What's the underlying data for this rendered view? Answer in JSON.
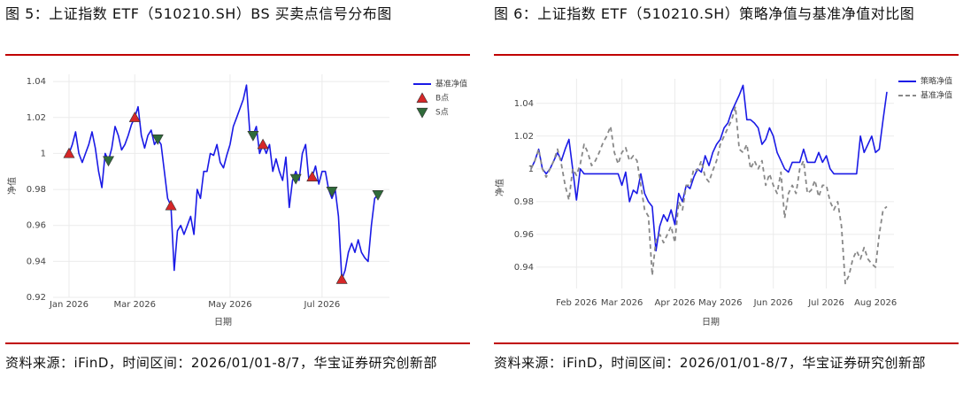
{
  "chart_data": [
    {
      "type": "line",
      "title": "图 5：上证指数 ETF（510210.SH）BS 买卖点信号分布图",
      "source": "资料来源：iFinD，时间区间：2026/01/01-8/7，华宝证券研究创新部",
      "x_label": "日期",
      "y_label": "净值",
      "categories": [
        "Jan 2026",
        null,
        null,
        null,
        null,
        null,
        null,
        null,
        null,
        null,
        null,
        null,
        null,
        null,
        null,
        null,
        null,
        null,
        null,
        null,
        "Mar 2026",
        null,
        null,
        null,
        null,
        null,
        null,
        null,
        null,
        null,
        null,
        null,
        null,
        null,
        null,
        null,
        null,
        null,
        null,
        null,
        null,
        null,
        null,
        null,
        null,
        null,
        null,
        null,
        null,
        "May 2026",
        null,
        null,
        null,
        null,
        null,
        null,
        null,
        null,
        null,
        null,
        null,
        null,
        null,
        null,
        null,
        null,
        null,
        null,
        null,
        null,
        null,
        null,
        null,
        null,
        null,
        null,
        null,
        "Jul 2026",
        null,
        null,
        null,
        null,
        null,
        null,
        null,
        null,
        null,
        null,
        null,
        null,
        null,
        null,
        null,
        null,
        null
      ],
      "series": [
        {
          "name": "基准净值",
          "color": "#1a1ae6",
          "values": [
            1.0,
            1.005,
            1.012,
            1.0,
            0.995,
            1.0,
            1.005,
            1.012,
            1.003,
            0.99,
            0.981,
            1.0,
            0.996,
            1.003,
            1.015,
            1.01,
            1.002,
            1.005,
            1.01,
            1.016,
            1.02,
            1.026,
            1.01,
            1.003,
            1.01,
            1.013,
            1.005,
            1.008,
            1.005,
            0.99,
            0.975,
            0.971,
            0.935,
            0.957,
            0.96,
            0.955,
            0.96,
            0.965,
            0.955,
            0.98,
            0.975,
            0.99,
            0.99,
            1.0,
            0.999,
            1.005,
            0.995,
            0.992,
            0.999,
            1.005,
            1.015,
            1.02,
            1.025,
            1.03,
            1.038,
            1.012,
            1.01,
            1.015,
            1.0,
            1.005,
            1.0,
            1.005,
            0.99,
            0.997,
            0.99,
            0.985,
            0.998,
            0.97,
            0.985,
            0.99,
            0.985,
            1.0,
            1.005,
            0.985,
            0.987,
            0.993,
            0.983,
            0.99,
            0.99,
            0.98,
            0.975,
            0.98,
            0.965,
            0.93,
            0.935,
            0.945,
            0.95,
            0.945,
            0.952,
            0.945,
            0.942,
            0.94,
            0.96,
            0.975,
            0.977
          ]
        },
        {
          "name": "B点",
          "color": "#d62728",
          "marker": "triangle-up",
          "values": [
            1.0,
            null,
            null,
            null,
            null,
            null,
            null,
            null,
            null,
            null,
            null,
            null,
            null,
            null,
            null,
            null,
            null,
            null,
            null,
            null,
            1.02,
            null,
            null,
            null,
            null,
            null,
            null,
            null,
            null,
            null,
            null,
            0.971,
            null,
            null,
            null,
            null,
            null,
            null,
            null,
            null,
            null,
            null,
            null,
            null,
            null,
            null,
            null,
            null,
            null,
            null,
            null,
            null,
            null,
            null,
            null,
            null,
            null,
            null,
            null,
            1.005,
            null,
            null,
            null,
            null,
            null,
            null,
            null,
            null,
            null,
            null,
            null,
            null,
            null,
            null,
            0.987,
            null,
            null,
            null,
            null,
            null,
            null,
            null,
            null,
            0.93,
            null,
            null,
            null,
            null,
            null,
            null,
            null,
            null,
            null,
            null,
            null
          ]
        },
        {
          "name": "S点",
          "color": "#2f6b3a",
          "marker": "triangle-down",
          "values": [
            null,
            null,
            null,
            null,
            null,
            null,
            null,
            null,
            null,
            null,
            null,
            null,
            0.996,
            null,
            null,
            null,
            null,
            null,
            null,
            null,
            null,
            null,
            null,
            null,
            null,
            null,
            null,
            1.008,
            null,
            null,
            null,
            null,
            null,
            null,
            null,
            null,
            null,
            null,
            null,
            null,
            null,
            null,
            null,
            null,
            null,
            null,
            null,
            null,
            null,
            null,
            null,
            null,
            null,
            null,
            null,
            null,
            1.01,
            null,
            null,
            null,
            null,
            null,
            null,
            null,
            null,
            null,
            null,
            null,
            null,
            0.986,
            null,
            null,
            null,
            null,
            null,
            null,
            null,
            null,
            null,
            null,
            0.979,
            null,
            null,
            null,
            null,
            null,
            null,
            null,
            null,
            null,
            null,
            null,
            null,
            null,
            0.977
          ]
        }
      ],
      "ylim": [
        0.92,
        1.044
      ],
      "yticks": [
        0.92,
        0.94,
        0.96,
        0.98,
        1,
        1.02,
        1.04
      ],
      "grid": true,
      "legend": "right"
    },
    {
      "type": "line",
      "title": "图 6：上证指数 ETF（510210.SH）策略净值与基准净值对比图",
      "source": "资料来源：iFinD，时间区间：2026/01/01-8/7，华宝证券研究创新部",
      "x_label": "日期",
      "y_label": "净值",
      "categories": [
        null,
        null,
        null,
        null,
        null,
        null,
        null,
        null,
        null,
        null,
        null,
        null,
        "Feb 2026",
        null,
        null,
        null,
        null,
        null,
        null,
        null,
        null,
        null,
        null,
        null,
        "Mar 2026",
        null,
        null,
        null,
        null,
        null,
        null,
        null,
        null,
        null,
        null,
        null,
        null,
        null,
        "Apr 2026",
        null,
        null,
        null,
        null,
        null,
        null,
        null,
        null,
        null,
        null,
        null,
        "May 2026",
        null,
        null,
        null,
        null,
        null,
        null,
        null,
        null,
        null,
        null,
        null,
        null,
        null,
        "Jun 2026",
        null,
        null,
        null,
        null,
        null,
        null,
        null,
        null,
        null,
        null,
        null,
        null,
        null,
        "Jul 2026",
        null,
        null,
        null,
        null,
        null,
        null,
        null,
        null,
        null,
        null,
        null,
        null,
        "Aug 2026",
        null,
        null,
        null
      ],
      "series": [
        {
          "name": "策略净值",
          "color": "#1a1ae6",
          "values": [
            1.0,
            1.005,
            1.012,
            1.0,
            0.997,
            1.0,
            1.005,
            1.01,
            1.005,
            1.012,
            1.018,
            1.0,
            0.981,
            1.0,
            0.997,
            0.997,
            0.997,
            0.997,
            0.997,
            0.997,
            0.997,
            0.997,
            0.997,
            0.997,
            0.99,
            0.998,
            0.98,
            0.987,
            0.985,
            0.997,
            0.985,
            0.98,
            0.977,
            0.95,
            0.965,
            0.972,
            0.968,
            0.975,
            0.966,
            0.985,
            0.98,
            0.99,
            0.988,
            0.995,
            1.0,
            0.998,
            1.008,
            1.002,
            1.01,
            1.015,
            1.018,
            1.025,
            1.028,
            1.035,
            1.04,
            1.045,
            1.051,
            1.03,
            1.03,
            1.028,
            1.025,
            1.015,
            1.018,
            1.025,
            1.02,
            1.01,
            1.005,
            1.0,
            0.998,
            1.004,
            1.004,
            1.004,
            1.012,
            1.004,
            1.004,
            1.004,
            1.01,
            1.004,
            1.008,
            1.0,
            0.997,
            0.997,
            0.997,
            0.997,
            0.997,
            0.997,
            0.997,
            1.02,
            1.01,
            1.015,
            1.02,
            1.01,
            1.012,
            1.03,
            1.047
          ]
        },
        {
          "name": "基准净值",
          "color": "#888888",
          "dash": true,
          "values": [
            1.0,
            1.005,
            1.012,
            1.0,
            0.995,
            1.0,
            1.005,
            1.012,
            1.003,
            0.99,
            0.981,
            1.0,
            0.996,
            1.003,
            1.015,
            1.01,
            1.002,
            1.005,
            1.01,
            1.016,
            1.02,
            1.026,
            1.01,
            1.003,
            1.01,
            1.013,
            1.005,
            1.008,
            1.005,
            0.99,
            0.975,
            0.971,
            0.935,
            0.957,
            0.96,
            0.955,
            0.96,
            0.965,
            0.955,
            0.98,
            0.975,
            0.99,
            0.99,
            1.0,
            0.999,
            1.005,
            0.995,
            0.992,
            0.999,
            1.005,
            1.015,
            1.02,
            1.025,
            1.03,
            1.038,
            1.012,
            1.01,
            1.015,
            1.0,
            1.005,
            1.0,
            1.005,
            0.99,
            0.997,
            0.99,
            0.985,
            0.998,
            0.97,
            0.985,
            0.99,
            0.985,
            1.0,
            1.005,
            0.985,
            0.987,
            0.993,
            0.983,
            0.99,
            0.99,
            0.98,
            0.975,
            0.98,
            0.965,
            0.93,
            0.935,
            0.945,
            0.95,
            0.945,
            0.952,
            0.945,
            0.942,
            0.94,
            0.96,
            0.975,
            0.977
          ]
        }
      ],
      "ylim": [
        0.927,
        1.055
      ],
      "yticks": [
        0.94,
        0.96,
        0.98,
        1,
        1.02,
        1.04
      ],
      "grid": true,
      "legend": "right"
    }
  ]
}
